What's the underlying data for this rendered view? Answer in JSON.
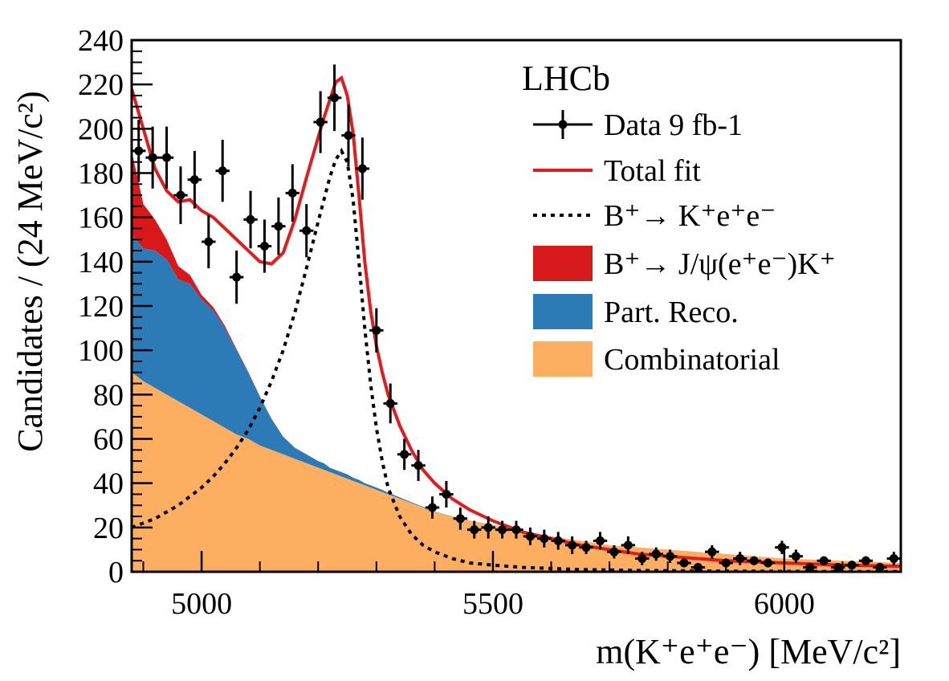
{
  "chart_data": {
    "type": "line",
    "experiment_label": "LHCb",
    "xlabel": "m(K⁺e⁺e⁻) [MeV/c²]",
    "ylabel": "Candidates / (24 MeV/c²)",
    "xlim": [
      4880,
      6200
    ],
    "ylim": [
      0,
      240
    ],
    "xticks": [
      5000,
      5500,
      6000
    ],
    "yticks": [
      0,
      20,
      40,
      60,
      80,
      100,
      120,
      140,
      160,
      180,
      200,
      220,
      240
    ],
    "legend_position": "top-right",
    "legend": [
      {
        "label": "Data 9 fb-1",
        "style": "points"
      },
      {
        "label": "Total fit",
        "style": "line",
        "color": "#e41a1c"
      },
      {
        "label": "B⁺→ K⁺e⁺e⁻",
        "style": "dashed",
        "color": "#000000"
      },
      {
        "label": "B⁺→ J/ψ(e⁺e⁻)K⁺",
        "style": "fill",
        "color": "#d7191c"
      },
      {
        "label": "Part. Reco.",
        "style": "fill",
        "color": "#2c7bb6"
      },
      {
        "label": "Combinatorial",
        "style": "fill",
        "color": "#fdae61"
      }
    ],
    "colors": {
      "total_fit": "#e41a1c",
      "jpsi": "#d7191c",
      "part_reco": "#2c7bb6",
      "combinatorial": "#fdae61",
      "signal": "#000000",
      "data": "#000000"
    },
    "data_points": {
      "x": [
        4892,
        4916,
        4940,
        4964,
        4988,
        5012,
        5036,
        5060,
        5084,
        5108,
        5132,
        5156,
        5180,
        5204,
        5228,
        5252,
        5276,
        5300,
        5324,
        5348,
        5372,
        5396,
        5420,
        5444,
        5468,
        5492,
        5516,
        5540,
        5564,
        5588,
        5612,
        5636,
        5660,
        5684,
        5708,
        5732,
        5756,
        5780,
        5804,
        5828,
        5852,
        5876,
        5900,
        5924,
        5948,
        5972,
        5996,
        6020,
        6044,
        6068,
        6092,
        6116,
        6140,
        6164,
        6188
      ],
      "y": [
        190,
        187,
        187,
        170,
        177,
        149,
        181,
        133,
        159,
        147,
        156,
        171,
        154,
        203,
        214,
        197,
        182,
        109,
        76,
        53,
        48,
        29,
        35,
        24,
        19,
        20,
        19,
        19,
        16,
        15,
        14,
        12,
        11,
        14,
        9,
        12,
        6,
        8,
        7,
        4,
        2,
        9,
        4,
        6,
        5,
        4,
        11,
        7,
        2,
        5,
        2,
        3,
        5,
        2,
        6
      ],
      "yerr": [
        14,
        14,
        14,
        13,
        13,
        12,
        14,
        12,
        13,
        12,
        13,
        13,
        12,
        14,
        15,
        14,
        14,
        10,
        9,
        7,
        7,
        5,
        6,
        5,
        4,
        5,
        4,
        4,
        4,
        4,
        4,
        4,
        3,
        4,
        3,
        4,
        3,
        3,
        3,
        2,
        2,
        3,
        2,
        3,
        2,
        2,
        3,
        3,
        2,
        2,
        2,
        2,
        2,
        2,
        3
      ],
      "xerr": 12
    },
    "curves": {
      "x": [
        4880,
        4900,
        4920,
        4940,
        4960,
        4980,
        5000,
        5020,
        5040,
        5060,
        5080,
        5100,
        5120,
        5140,
        5160,
        5180,
        5200,
        5210,
        5220,
        5230,
        5240,
        5250,
        5260,
        5270,
        5280,
        5290,
        5300,
        5310,
        5320,
        5340,
        5360,
        5380,
        5400,
        5430,
        5460,
        5500,
        5550,
        5600,
        5650,
        5700,
        5750,
        5800,
        5900,
        6000,
        6100,
        6200
      ],
      "total_fit": [
        218,
        200,
        182,
        172,
        167,
        168,
        163,
        160,
        155,
        150,
        145,
        140,
        139,
        144,
        159,
        178,
        196,
        205,
        213,
        221,
        223,
        215,
        198,
        170,
        140,
        118,
        102,
        90,
        80,
        66,
        55,
        46,
        40,
        33,
        28,
        23,
        18,
        15,
        12,
        10,
        8,
        7,
        5,
        4,
        3,
        2.5
      ],
      "signal": [
        20,
        22,
        24,
        27,
        30,
        34,
        38,
        43,
        49,
        56,
        64,
        74,
        86,
        100,
        117,
        137,
        158,
        168,
        178,
        186,
        190,
        185,
        168,
        140,
        110,
        85,
        65,
        50,
        38,
        25,
        17,
        12,
        9,
        6,
        4,
        3,
        2,
        1.5,
        1,
        0.8,
        0.6,
        0.5,
        0.3,
        0.2,
        0.1,
        0.1
      ],
      "combinatorial": [
        90,
        86,
        83,
        80,
        77,
        74,
        71,
        68,
        65,
        62,
        60,
        57,
        55,
        53,
        51,
        49,
        47,
        46,
        45,
        44,
        43,
        42,
        41,
        40,
        39,
        38,
        37,
        36,
        35,
        33,
        31,
        29,
        27,
        25,
        23,
        21,
        18,
        16,
        14,
        12,
        11,
        10,
        8,
        6,
        5,
        4
      ],
      "part_reco": [
        62,
        60,
        62,
        61,
        55,
        56,
        52,
        50,
        45,
        38,
        30,
        22,
        14,
        8,
        5,
        4,
        3,
        3,
        2,
        2,
        2,
        2,
        1.5,
        1.5,
        1,
        1,
        1,
        1,
        0.8,
        0.6,
        0.4,
        0.3,
        0.2,
        0.1,
        0.1,
        0.1,
        0,
        0,
        0,
        0,
        0,
        0,
        0,
        0,
        0,
        0
      ],
      "jpsi": [
        38,
        20,
        14,
        9,
        6,
        4,
        2,
        1.5,
        1,
        0.5,
        0.3,
        0.2,
        0.1,
        0,
        0,
        0,
        0,
        0,
        0,
        0,
        0,
        0,
        0,
        0,
        0,
        0,
        0,
        0,
        0,
        0,
        0,
        0,
        0,
        0,
        0,
        0,
        0,
        0,
        0,
        0,
        0,
        0,
        0,
        0,
        0,
        0
      ]
    }
  }
}
